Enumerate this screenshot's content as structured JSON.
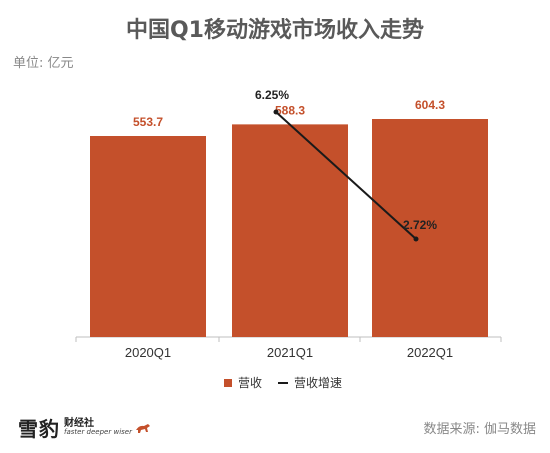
{
  "title": "中国Q1移动游戏市场收入走势",
  "unit_label": "单位: 亿元",
  "source_label": "数据来源: 伽马数据",
  "logo": {
    "main": "雪豹",
    "sub_cn": "财经社",
    "sub_en": "faster deeper wiser"
  },
  "colors": {
    "bar": "#c4502b",
    "line": "#1a1a1a",
    "bar_label": "#c4502b",
    "axis": "#bfbfbf"
  },
  "chart_data": {
    "type": "bar",
    "categories": [
      "2020Q1",
      "2021Q1",
      "2022Q1"
    ],
    "series": [
      {
        "name": "营收",
        "type": "bar",
        "values": [
          553.7,
          588.3,
          604.3
        ],
        "labels": [
          "553.7",
          "588.3",
          "604.3"
        ]
      },
      {
        "name": "营收增速",
        "type": "line",
        "values": [
          null,
          6.25,
          2.72
        ],
        "labels": [
          "",
          "6.25%",
          "2.72%"
        ],
        "unit": "%"
      }
    ],
    "legend": [
      "营收",
      "营收增速"
    ],
    "legend_position": "bottom",
    "grid": false
  }
}
